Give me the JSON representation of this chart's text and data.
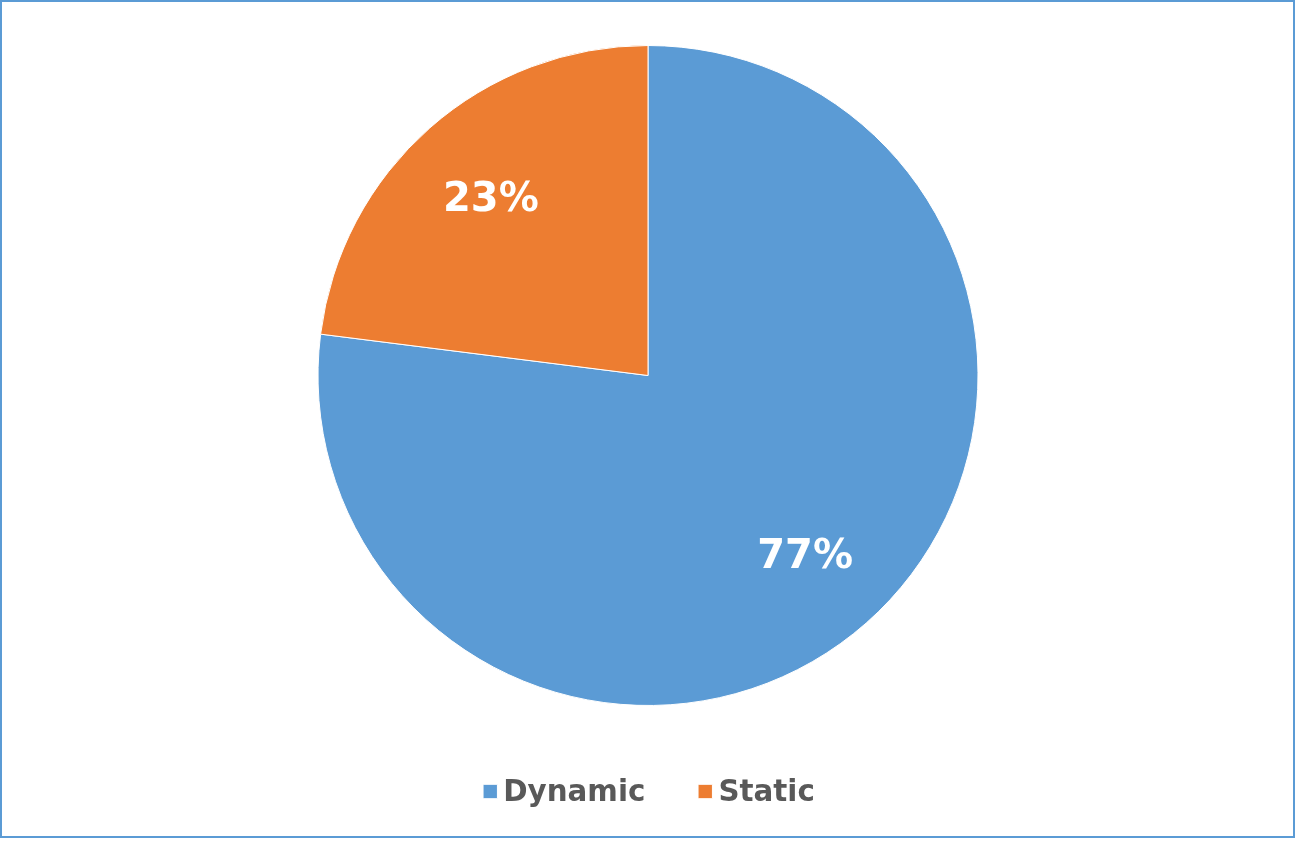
{
  "chart_data": {
    "type": "pie",
    "categories": [
      "Dynamic",
      "Static"
    ],
    "values": [
      77,
      23
    ],
    "colors": [
      "#5b9bd5",
      "#ed7d31"
    ],
    "value_labels": [
      "77%",
      "23%"
    ],
    "legend": "bottom"
  }
}
